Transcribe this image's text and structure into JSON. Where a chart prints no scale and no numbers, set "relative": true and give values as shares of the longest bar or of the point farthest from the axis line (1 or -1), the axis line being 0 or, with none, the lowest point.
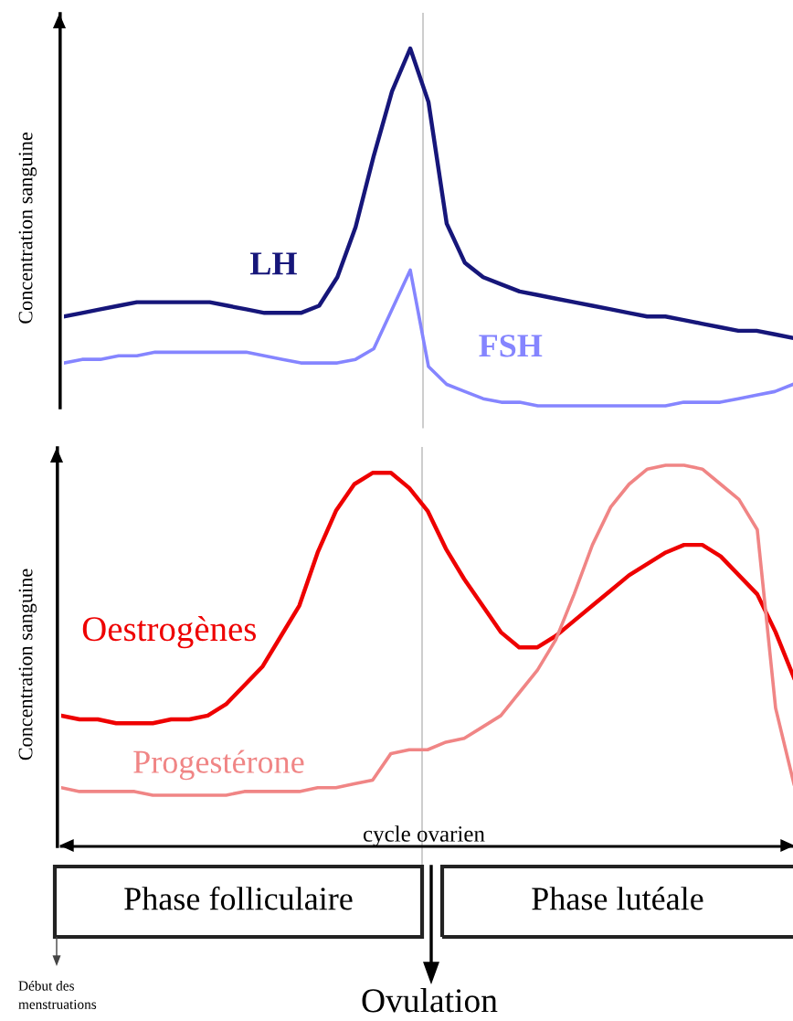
{
  "chart_data": [
    {
      "type": "line",
      "relative": true,
      "ylabel": "Concentration sanguine",
      "legend": false,
      "grid": false,
      "categories": [
        null,
        null,
        null,
        null,
        null,
        null,
        null,
        null,
        null,
        null,
        null,
        null,
        null,
        null,
        null,
        null,
        null,
        null,
        null,
        null,
        null,
        null,
        null,
        null,
        null,
        null,
        null,
        null,
        null,
        null,
        null,
        null,
        null,
        null,
        null,
        null,
        null,
        null,
        null,
        null,
        null
      ],
      "series": [
        {
          "name": "LH",
          "color": "#16167a",
          "values": [
            0.25,
            0.26,
            0.27,
            0.28,
            0.29,
            0.29,
            0.29,
            0.29,
            0.29,
            0.28,
            0.27,
            0.26,
            0.26,
            0.26,
            0.28,
            0.36,
            0.5,
            0.7,
            0.88,
            1.0,
            0.85,
            0.51,
            0.4,
            0.36,
            0.34,
            0.32,
            0.31,
            0.3,
            0.29,
            0.28,
            0.27,
            0.26,
            0.25,
            0.25,
            0.24,
            0.23,
            0.22,
            0.21,
            0.21,
            0.2,
            0.19
          ]
        },
        {
          "name": "FSH",
          "color": "#8585ff",
          "values": [
            0.12,
            0.13,
            0.13,
            0.14,
            0.14,
            0.15,
            0.15,
            0.15,
            0.15,
            0.15,
            0.15,
            0.14,
            0.13,
            0.12,
            0.12,
            0.12,
            0.13,
            0.16,
            0.27,
            0.38,
            0.11,
            0.06,
            0.04,
            0.02,
            0.01,
            0.01,
            0.0,
            0.0,
            0.0,
            0.0,
            0.0,
            0.0,
            0.0,
            0.0,
            0.01,
            0.01,
            0.01,
            0.02,
            0.03,
            0.04,
            0.06
          ]
        }
      ]
    },
    {
      "type": "line",
      "relative": true,
      "ylabel": "Concentration sanguine",
      "xlabel": "cycle ovarien",
      "legend": false,
      "grid": false,
      "categories": [
        null,
        null,
        null,
        null,
        null,
        null,
        null,
        null,
        null,
        null,
        null,
        null,
        null,
        null,
        null,
        null,
        null,
        null,
        null,
        null,
        null,
        null,
        null,
        null,
        null,
        null,
        null,
        null,
        null,
        null,
        null,
        null,
        null,
        null,
        null,
        null,
        null,
        null,
        null,
        null,
        null
      ],
      "annotations": [
        "Phase folliculaire",
        "Phase lutéale",
        "Ovulation",
        "Début des\nmenstruations"
      ],
      "series": [
        {
          "name": "Oestrogènes",
          "color": "#ee0000",
          "values": [
            0.34,
            0.33,
            0.33,
            0.32,
            0.32,
            0.32,
            0.33,
            0.33,
            0.34,
            0.37,
            0.42,
            0.47,
            0.55,
            0.63,
            0.77,
            0.88,
            0.95,
            0.98,
            0.98,
            0.94,
            0.88,
            0.78,
            0.7,
            0.63,
            0.56,
            0.52,
            0.52,
            0.55,
            0.59,
            0.63,
            0.67,
            0.71,
            0.74,
            0.77,
            0.79,
            0.79,
            0.76,
            0.71,
            0.66,
            0.56,
            0.44
          ]
        },
        {
          "name": "Progestérone",
          "color": "#f08585",
          "values": [
            0.15,
            0.14,
            0.14,
            0.14,
            0.14,
            0.13,
            0.13,
            0.13,
            0.13,
            0.13,
            0.14,
            0.14,
            0.14,
            0.14,
            0.15,
            0.15,
            0.16,
            0.17,
            0.24,
            0.25,
            0.25,
            0.27,
            0.28,
            0.31,
            0.34,
            0.4,
            0.46,
            0.54,
            0.66,
            0.79,
            0.89,
            0.95,
            0.99,
            1.0,
            1.0,
            0.99,
            0.95,
            0.91,
            0.83,
            0.36,
            0.16
          ]
        }
      ]
    }
  ]
}
